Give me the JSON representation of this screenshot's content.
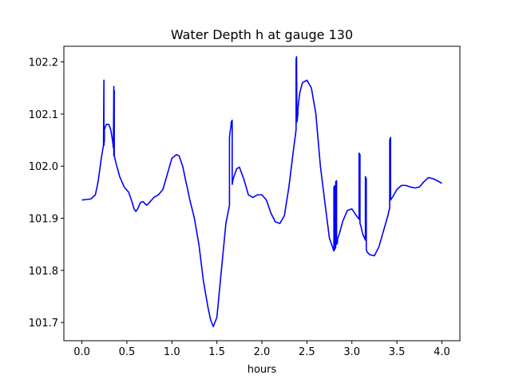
{
  "chart_data": {
    "type": "line",
    "title": "Water Depth h at gauge 130",
    "xlabel": "hours",
    "ylabel": "",
    "xlim": [
      -0.2,
      4.2
    ],
    "ylim": [
      101.665,
      102.23
    ],
    "grid": false,
    "x_ticks": [
      0.0,
      0.5,
      1.0,
      1.5,
      2.0,
      2.5,
      3.0,
      3.5,
      4.0
    ],
    "x_tick_labels": [
      "0.0",
      "0.5",
      "1.0",
      "1.5",
      "2.0",
      "2.5",
      "3.0",
      "3.5",
      "4.0"
    ],
    "y_ticks": [
      101.7,
      101.8,
      101.9,
      102.0,
      102.1,
      102.2
    ],
    "y_tick_labels": [
      "101.7",
      "101.8",
      "101.9",
      "102.0",
      "102.1",
      "102.2"
    ],
    "series": [
      {
        "color": "#0000ff",
        "x": [
          0.0,
          0.05,
          0.1,
          0.15,
          0.18,
          0.2,
          0.22,
          0.24,
          0.245,
          0.245,
          0.25,
          0.25,
          0.27,
          0.3,
          0.32,
          0.34,
          0.35,
          0.355,
          0.355,
          0.36,
          0.36,
          0.38,
          0.42,
          0.47,
          0.52,
          0.55,
          0.58,
          0.6,
          0.62,
          0.65,
          0.68,
          0.7,
          0.72,
          0.75,
          0.8,
          0.85,
          0.9,
          0.95,
          1.0,
          1.05,
          1.08,
          1.12,
          1.15,
          1.2,
          1.25,
          1.3,
          1.35,
          1.4,
          1.43,
          1.46,
          1.5,
          1.55,
          1.6,
          1.64,
          1.64,
          1.65,
          1.655,
          1.66,
          1.67,
          1.67,
          1.68,
          1.7,
          1.72,
          1.75,
          1.8,
          1.85,
          1.9,
          1.95,
          2.0,
          2.05,
          2.1,
          2.15,
          2.2,
          2.25,
          2.3,
          2.35,
          2.38,
          2.38,
          2.385,
          2.39,
          2.4,
          2.4,
          2.42,
          2.45,
          2.5,
          2.55,
          2.6,
          2.65,
          2.7,
          2.75,
          2.8,
          2.8,
          2.81,
          2.81,
          2.82,
          2.82,
          2.83,
          2.83,
          2.84,
          2.84,
          2.86,
          2.9,
          2.95,
          3.0,
          3.05,
          3.08,
          3.08,
          3.09,
          3.09,
          3.1,
          3.12,
          3.15,
          3.15,
          3.16,
          3.16,
          3.17,
          3.2,
          3.25,
          3.3,
          3.35,
          3.4,
          3.42,
          3.42,
          3.43,
          3.43,
          3.45,
          3.5,
          3.55,
          3.6,
          3.65,
          3.7,
          3.75,
          3.8,
          3.85,
          3.9,
          3.95,
          4.0
        ],
        "y": [
          101.935,
          101.936,
          101.937,
          101.945,
          101.97,
          101.995,
          102.02,
          102.04,
          102.165,
          102.04,
          102.05,
          102.07,
          102.08,
          102.08,
          102.07,
          102.05,
          102.035,
          102.153,
          102.02,
          102.145,
          102.02,
          102.005,
          101.98,
          101.96,
          101.95,
          101.935,
          101.918,
          101.913,
          101.918,
          101.93,
          101.932,
          101.928,
          101.925,
          101.93,
          101.94,
          101.945,
          101.955,
          101.985,
          102.015,
          102.022,
          102.02,
          102.0,
          101.975,
          101.935,
          101.9,
          101.85,
          101.78,
          101.73,
          101.705,
          101.692,
          101.71,
          101.8,
          101.89,
          101.925,
          102.055,
          102.07,
          102.075,
          102.085,
          102.088,
          101.965,
          101.975,
          101.985,
          101.995,
          101.998,
          101.975,
          101.945,
          101.94,
          101.945,
          101.945,
          101.935,
          101.91,
          101.893,
          101.89,
          101.905,
          101.96,
          102.03,
          102.07,
          102.205,
          102.21,
          102.085,
          102.1,
          102.11,
          102.14,
          102.16,
          102.165,
          102.15,
          102.1,
          102.0,
          101.93,
          101.862,
          101.837,
          101.96,
          101.962,
          101.84,
          101.845,
          101.97,
          101.972,
          101.85,
          101.853,
          101.86,
          101.87,
          101.895,
          101.915,
          101.918,
          101.905,
          101.898,
          102.025,
          102.022,
          101.89,
          101.885,
          101.87,
          101.858,
          101.98,
          101.975,
          101.84,
          101.835,
          101.83,
          101.828,
          101.845,
          101.875,
          101.905,
          101.92,
          102.05,
          102.055,
          101.935,
          101.94,
          101.955,
          101.963,
          101.963,
          101.96,
          101.958,
          101.96,
          101.97,
          101.978,
          101.976,
          101.972,
          101.967
        ]
      }
    ]
  }
}
